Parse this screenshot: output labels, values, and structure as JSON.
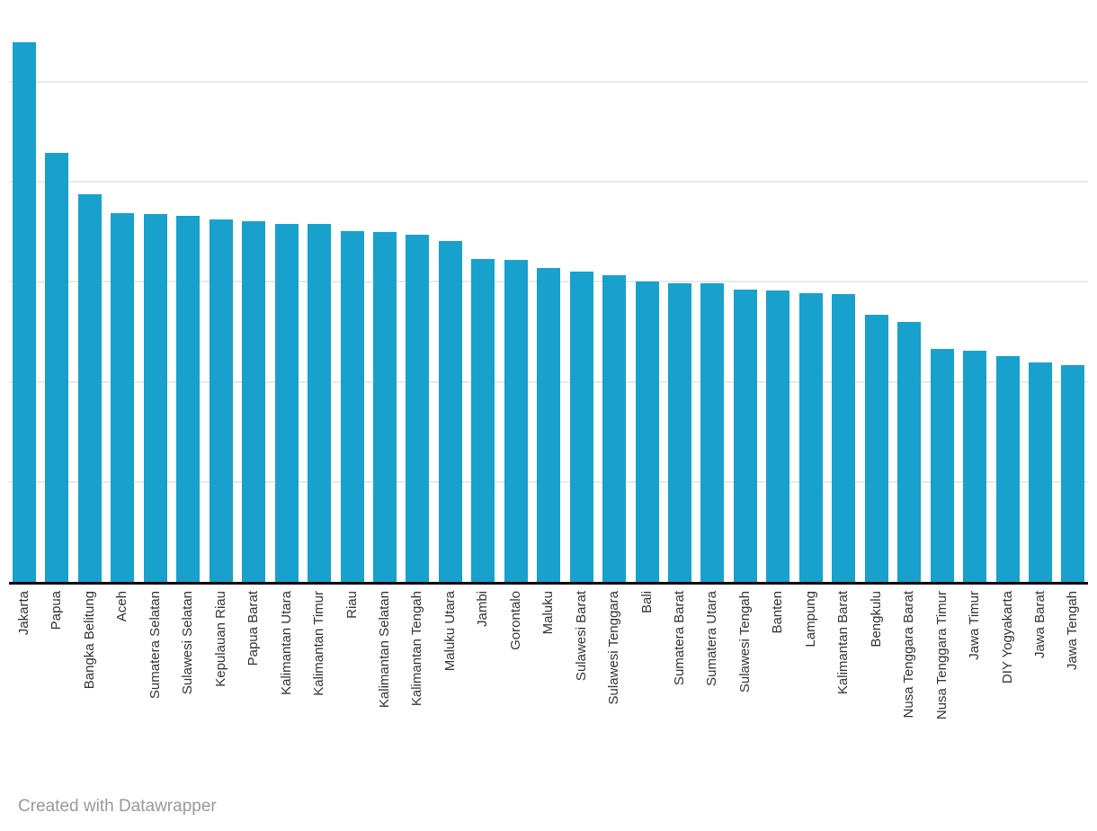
{
  "chart_data": {
    "type": "bar",
    "title": "",
    "xlabel": "",
    "ylabel": "",
    "categories": [
      "Jakarta",
      "Papua",
      "Bangka Belitung",
      "Aceh",
      "Sumatera Selatan",
      "Sulawesi Selatan",
      "Kepulauan Riau",
      "Papua Barat",
      "Kalimantan Utara",
      "Kalimantan Timur",
      "Riau",
      "Kalimantan Selatan",
      "Kalimantan Tengah",
      "Maluku Utara",
      "Jambi",
      "Gorontalo",
      "Maluku",
      "Sulawesi Barat",
      "Sulawesi Tenggara",
      "Bali",
      "Sumatera Barat",
      "Sumatera Utara",
      "Sulawesi Tengah",
      "Banten",
      "Lampung",
      "Kalimantan Barat",
      "Bengkulu",
      "Nusa Tenggara Barat",
      "Nusa Tenggara Timur",
      "Jawa Timur",
      "DIY Yogyakarta",
      "Jawa Barat",
      "Jawa Tengah"
    ],
    "values": [
      5.4,
      4.29,
      3.88,
      3.69,
      3.68,
      3.66,
      3.62,
      3.61,
      3.58,
      3.58,
      3.51,
      3.5,
      3.47,
      3.41,
      3.23,
      3.22,
      3.14,
      3.1,
      3.07,
      3.0,
      2.99,
      2.99,
      2.92,
      2.91,
      2.89,
      2.88,
      2.67,
      2.6,
      2.33,
      2.31,
      2.26,
      2.19,
      2.17
    ],
    "ylim": [
      0,
      5.82
    ],
    "yticks": [
      1,
      2,
      3,
      4,
      5
    ],
    "ytick_labels_visible": false,
    "grid": "horizontal",
    "legend": "none",
    "sort_order": "descending"
  },
  "colors": {
    "bar": "#18a1cd",
    "gridline": "#e9e9e9",
    "axis_line": "#000000",
    "tick_label": "#333333",
    "footer_text": "#999999",
    "background": "#ffffff"
  },
  "footer": {
    "credit_label": "Created with Datawrapper"
  }
}
